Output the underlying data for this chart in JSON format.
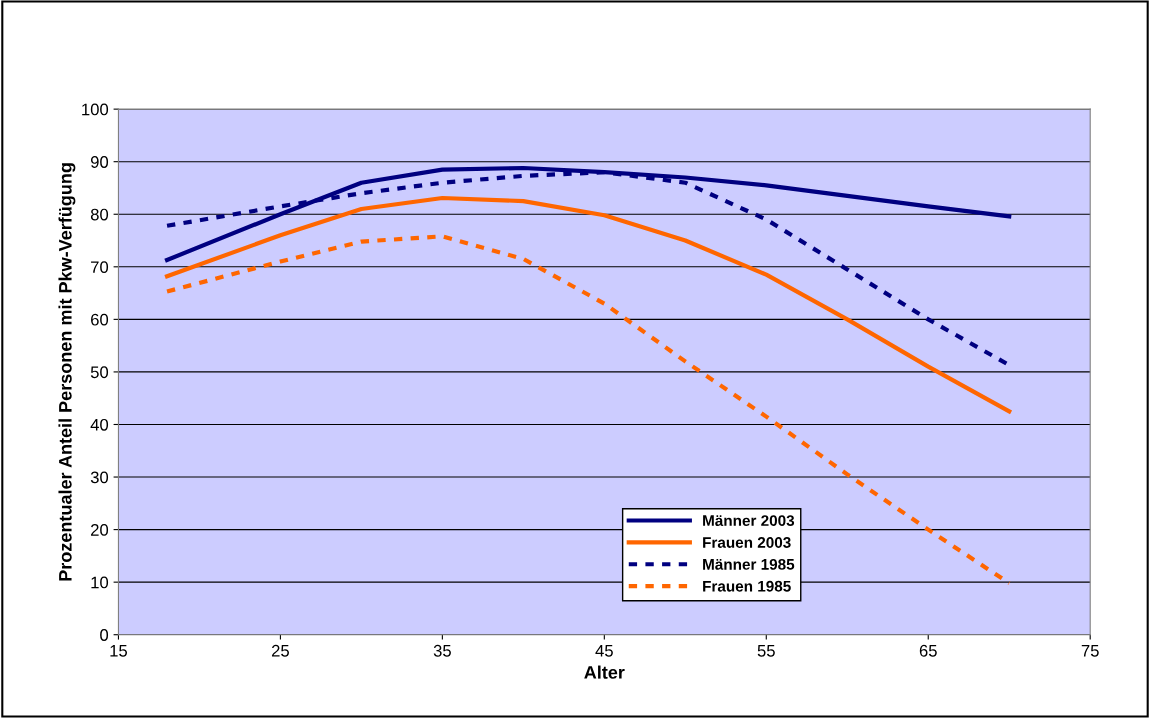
{
  "chart_data": {
    "type": "line",
    "xlabel": "Alter",
    "ylabel": "Prozentualer Anteil Personen mit Pkw-Verfügung",
    "x": [
      18,
      25,
      30,
      35,
      40,
      45,
      50,
      55,
      60,
      65,
      70
    ],
    "series": [
      {
        "name": "Männer 2003",
        "color": "#000080",
        "line_style": "solid",
        "values": [
          71.3,
          80,
          86,
          88.5,
          88.8,
          88,
          87,
          85.5,
          83.5,
          81.5,
          79.6
        ]
      },
      {
        "name": "Frauen 2003",
        "color": "#ff6600",
        "line_style": "solid",
        "values": [
          68.2,
          76,
          81,
          83.1,
          82.5,
          79.8,
          75,
          68.5,
          60,
          51,
          42.5
        ]
      },
      {
        "name": "Männer 1985",
        "color": "#000080",
        "line_style": "dashed",
        "values": [
          77.8,
          81.5,
          84,
          86,
          87.3,
          88,
          86,
          79,
          69.5,
          60,
          51.3
        ]
      },
      {
        "name": "Frauen 1985",
        "color": "#ff6600",
        "line_style": "dashed",
        "values": [
          65.3,
          71,
          74.8,
          75.8,
          71.5,
          63,
          52,
          41.5,
          30.5,
          20,
          9.8
        ]
      }
    ],
    "xlim": [
      15,
      75
    ],
    "xticks": [
      15,
      25,
      35,
      45,
      55,
      65,
      75
    ],
    "ylim": [
      0,
      100
    ],
    "yticks": [
      0,
      10,
      20,
      30,
      40,
      50,
      60,
      70,
      80,
      90,
      100
    ],
    "grid": "y",
    "legend": "bottom right",
    "marker": "none"
  }
}
